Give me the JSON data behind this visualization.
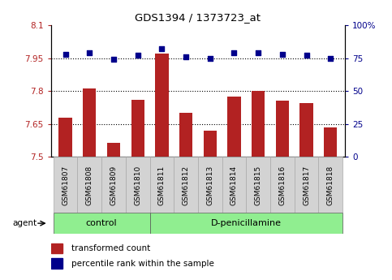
{
  "title": "GDS1394 / 1373723_at",
  "samples": [
    "GSM61807",
    "GSM61808",
    "GSM61809",
    "GSM61810",
    "GSM61811",
    "GSM61812",
    "GSM61813",
    "GSM61814",
    "GSM61815",
    "GSM61816",
    "GSM61817",
    "GSM61818"
  ],
  "transformed_count": [
    7.68,
    7.81,
    7.565,
    7.76,
    7.97,
    7.7,
    7.62,
    7.775,
    7.8,
    7.755,
    7.745,
    7.635
  ],
  "percentile_rank": [
    78,
    79,
    74,
    77,
    82,
    76,
    75,
    79,
    79,
    78,
    77,
    75
  ],
  "ylim_left": [
    7.5,
    8.1
  ],
  "ylim_right": [
    0,
    100
  ],
  "yticks_left": [
    7.5,
    7.65,
    7.8,
    7.95,
    8.1
  ],
  "yticks_right": [
    0,
    25,
    50,
    75,
    100
  ],
  "ytick_labels_left": [
    "7.5",
    "7.65",
    "7.8",
    "7.95",
    "8.1"
  ],
  "ytick_labels_right": [
    "0",
    "25",
    "50",
    "75",
    "100%"
  ],
  "hlines": [
    7.65,
    7.8,
    7.95
  ],
  "control_samples": 4,
  "bar_color": "#b22222",
  "dot_color": "#00008b",
  "control_label": "control",
  "treatment_label": "D-penicillamine",
  "agent_label": "agent",
  "legend_bar": "transformed count",
  "legend_dot": "percentile rank within the sample",
  "group_bg_color": "#90ee90",
  "xlabel_bg_color": "#d3d3d3",
  "bar_width": 0.55
}
